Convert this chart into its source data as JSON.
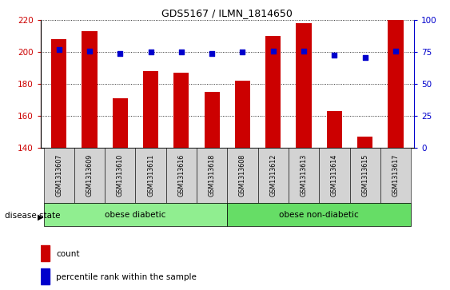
{
  "title": "GDS5167 / ILMN_1814650",
  "samples": [
    "GSM1313607",
    "GSM1313609",
    "GSM1313610",
    "GSM1313611",
    "GSM1313616",
    "GSM1313618",
    "GSM1313608",
    "GSM1313612",
    "GSM1313613",
    "GSM1313614",
    "GSM1313615",
    "GSM1313617"
  ],
  "counts": [
    208,
    213,
    171,
    188,
    187,
    175,
    182,
    210,
    218,
    163,
    147,
    220
  ],
  "percentile_ranks": [
    77,
    76,
    74,
    75,
    75,
    74,
    75,
    76,
    76,
    73,
    71,
    76
  ],
  "ylim_left": [
    140,
    220
  ],
  "yticks_left": [
    140,
    160,
    180,
    200,
    220
  ],
  "ylim_right": [
    0,
    100
  ],
  "yticks_right": [
    0,
    25,
    50,
    75,
    100
  ],
  "left_axis_color": "#cc0000",
  "right_axis_color": "#0000cc",
  "bar_color": "#cc0000",
  "dot_color": "#0000cc",
  "groups": [
    {
      "label": "obese diabetic",
      "start": 0,
      "end": 6,
      "color": "#90ee90"
    },
    {
      "label": "obese non-diabetic",
      "start": 6,
      "end": 12,
      "color": "#66dd66"
    }
  ],
  "group_label": "disease state",
  "tick_bg_color": "#d3d3d3",
  "legend_count_label": "count",
  "legend_pct_label": "percentile rank within the sample",
  "bar_width": 0.5,
  "plot_bg_color": "#ffffff",
  "fig_bg_color": "#ffffff"
}
